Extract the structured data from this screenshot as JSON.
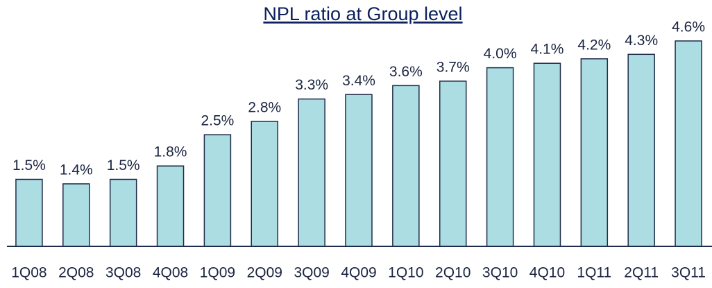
{
  "chart_data": {
    "type": "bar",
    "title": "NPL ratio at Group level",
    "categories": [
      "1Q08",
      "2Q08",
      "3Q08",
      "4Q08",
      "1Q09",
      "2Q09",
      "3Q09",
      "4Q09",
      "1Q10",
      "2Q10",
      "3Q10",
      "4Q10",
      "1Q11",
      "2Q11",
      "3Q11"
    ],
    "values": [
      1.5,
      1.4,
      1.5,
      1.8,
      2.5,
      2.8,
      3.3,
      3.4,
      3.6,
      3.7,
      4.0,
      4.1,
      4.2,
      4.3,
      4.6
    ],
    "value_labels": [
      "1.5%",
      "1.4%",
      "1.5%",
      "1.8%",
      "2.5%",
      "2.8%",
      "3.3%",
      "3.4%",
      "3.6%",
      "3.7%",
      "4.0%",
      "4.1%",
      "4.2%",
      "4.3%",
      "4.6%"
    ],
    "color": "#abdde3",
    "edge_color": "#1f2b4a",
    "ylim": [
      0,
      4.6
    ]
  }
}
